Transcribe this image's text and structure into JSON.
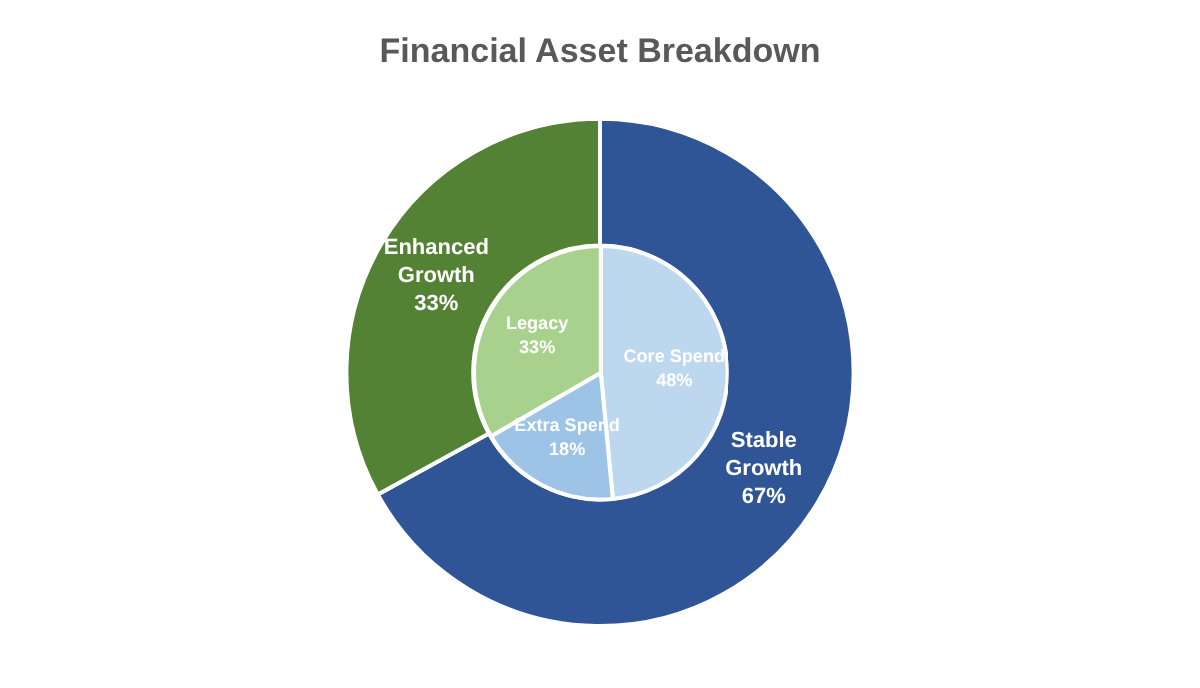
{
  "chart_data": [
    {
      "type": "donut",
      "title": "Financial Asset Breakdown",
      "data_labels": true,
      "categories": [
        "Stable Growth",
        "Enhanced Growth"
      ],
      "values": [
        67,
        33
      ],
      "value_labels": [
        "67%",
        "33%"
      ],
      "colors": [
        "#2f5597",
        "#548235"
      ]
    },
    {
      "type": "pie",
      "data_labels": true,
      "categories": [
        "Core Spend",
        "Extra Spend",
        "Legacy"
      ],
      "values": [
        48,
        18,
        33
      ],
      "value_labels": [
        "48%",
        "18%",
        "33%"
      ],
      "colors": [
        "#bdd7ee",
        "#9dc3e6",
        "#a9d18e"
      ]
    }
  ]
}
